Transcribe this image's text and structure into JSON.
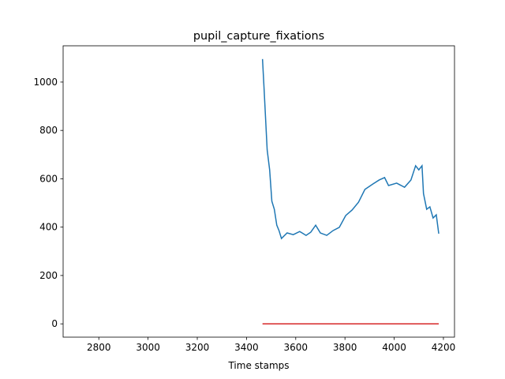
{
  "chart_data": {
    "type": "line",
    "title": "pupil_capture_fixations",
    "x_label": "Time stamps",
    "series": [
      {
        "color": "#1f77b4",
        "x": [
          3465,
          3471,
          3484,
          3494,
          3503,
          3513,
          3523,
          3532,
          3542,
          3565,
          3590,
          3616,
          3642,
          3661,
          3681,
          3700,
          3726,
          3752,
          3777,
          3803,
          3829,
          3855,
          3881,
          3913,
          3939,
          3961,
          3977,
          4010,
          4042,
          4068,
          4087,
          4100,
          4113,
          4119,
          4132,
          4145,
          4158,
          4171,
          4181
        ],
        "values": [
          1095,
          980,
          719,
          637,
          507,
          474,
          408,
          386,
          353,
          376,
          369,
          382,
          366,
          379,
          408,
          376,
          366,
          386,
          399,
          448,
          471,
          503,
          556,
          578,
          595,
          605,
          572,
          582,
          565,
          595,
          654,
          637,
          654,
          539,
          474,
          484,
          438,
          451,
          373
        ]
      },
      {
        "color": "#d62728",
        "x": [
          3465,
          4181
        ],
        "values": [
          0,
          0
        ]
      }
    ],
    "xlim": [
      2655,
      4245
    ],
    "xticks": [
      2800,
      3000,
      3200,
      3400,
      3600,
      3800,
      4000,
      4200
    ],
    "ylim": [
      -55,
      1150
    ],
    "yticks": [
      0,
      200,
      400,
      600,
      800,
      1000
    ]
  }
}
